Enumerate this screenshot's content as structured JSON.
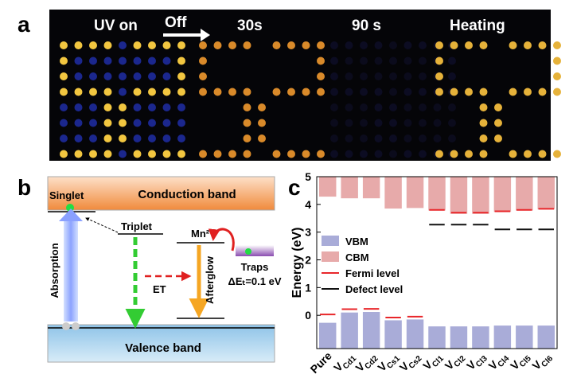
{
  "figure": {
    "a": {
      "label": "a",
      "captions": [
        "UV on",
        "Off",
        "30s",
        "90 s",
        "Heating"
      ]
    },
    "b": {
      "label": "b",
      "conduction": "Conduction band",
      "valence": "Valence band",
      "singlet": "Singlet",
      "triplet": "Triplet",
      "mn": "Mn²⁺",
      "absorption": "Absorption",
      "et": "ET",
      "afterglow": "Afterglow",
      "traps": "Traps",
      "delta": "ΔEₜ=0.1 eV"
    },
    "c": {
      "label": "c"
    }
  },
  "chart_data": {
    "type": "bar",
    "ylabel": "Energy (eV)",
    "categories": [
      "Pure",
      "VCd1",
      "VCd2",
      "VCs1",
      "VCs2",
      "VCl1",
      "VCl2",
      "VCl3",
      "VCl4",
      "VCl5",
      "VCl6"
    ],
    "ylim": [
      -1.2,
      5
    ],
    "yticks": [
      0,
      1,
      2,
      3,
      4,
      5
    ],
    "series": [
      {
        "name": "VBM",
        "color": "#a9acd8",
        "mark": "bar",
        "anchor": "bottom",
        "values": [
          -0.27,
          0.1,
          0.12,
          -0.18,
          -0.15,
          -0.4,
          -0.4,
          -0.4,
          -0.37,
          -0.37,
          -0.37
        ]
      },
      {
        "name": "CBM",
        "color": "#e7aaaa",
        "mark": "bar",
        "anchor": "top",
        "values": [
          4.28,
          4.22,
          4.22,
          3.85,
          3.87,
          3.78,
          3.66,
          3.66,
          3.73,
          3.78,
          3.82
        ]
      },
      {
        "name": "Fermi level",
        "color": "#e8262a",
        "mark": "dash",
        "values": [
          0.03,
          0.22,
          0.23,
          -0.08,
          -0.05,
          3.8,
          3.7,
          3.7,
          3.75,
          3.8,
          3.84
        ]
      },
      {
        "name": "Defect level",
        "color": "#111111",
        "mark": "dash",
        "values": [
          null,
          null,
          null,
          null,
          null,
          3.27,
          3.27,
          3.27,
          3.1,
          3.1,
          3.1
        ]
      }
    ]
  }
}
